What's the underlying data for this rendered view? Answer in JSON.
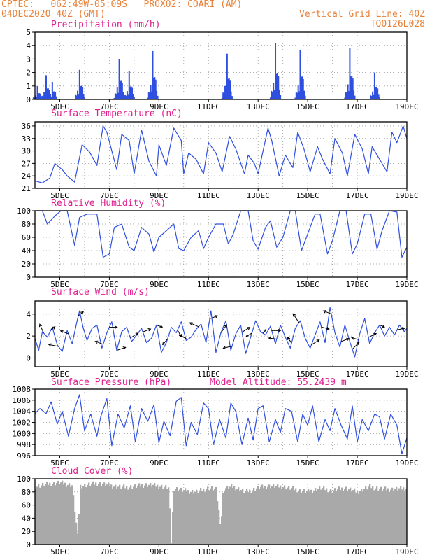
{
  "header": {
    "line1": "CPTEC:   062:49W-05:09S   PROX02: COARI (AM)",
    "line2": "04DEC2020 40Z (GMT)",
    "grid_note": "Vertical Grid Line: 40Z",
    "run_id": "TQ0126L028"
  },
  "colors": {
    "header": "#e8823a",
    "title": "#e0208f",
    "series": "#2f4fe0",
    "cloud": "#a9a9a9"
  },
  "chart_data": [
    {
      "type": "bar",
      "title": "Precipitation (mm/h)",
      "xlabel": "",
      "ylabel": "",
      "x_range": [
        4,
        19
      ],
      "ylim": [
        0,
        5
      ],
      "yticks": [
        0,
        1,
        2,
        3,
        4,
        5
      ],
      "xticks": [
        "5DEC",
        "7DEC",
        "9DEC",
        "11DEC",
        "13DEC",
        "15DEC",
        "17DEC",
        "19DEC"
      ],
      "grid": true,
      "bursts": [
        {
          "day": 4.1,
          "peak": 1.0
        },
        {
          "day": 4.45,
          "peak": 1.8
        },
        {
          "day": 4.7,
          "peak": 1.3
        },
        {
          "day": 5.8,
          "peak": 2.2
        },
        {
          "day": 7.4,
          "peak": 3.0
        },
        {
          "day": 7.8,
          "peak": 2.1
        },
        {
          "day": 8.75,
          "peak": 3.6
        },
        {
          "day": 11.75,
          "peak": 3.4
        },
        {
          "day": 13.7,
          "peak": 4.2
        },
        {
          "day": 14.7,
          "peak": 3.7
        },
        {
          "day": 16.7,
          "peak": 3.8
        },
        {
          "day": 17.7,
          "peak": 2.0
        }
      ]
    },
    {
      "type": "line",
      "title": "Surface Temperature (nC)",
      "xlabel": "",
      "ylabel": "",
      "x_range": [
        4,
        19
      ],
      "ylim": [
        21,
        37
      ],
      "yticks": [
        21,
        24,
        27,
        30,
        33,
        36
      ],
      "xticks": [
        "5DEC",
        "7DEC",
        "9DEC",
        "11DEC",
        "13DEC",
        "15DEC",
        "17DEC",
        "19DEC"
      ],
      "grid": true,
      "series": [
        {
          "x": [
            4.0,
            4.3,
            4.6,
            4.8,
            5.1,
            5.3,
            5.6,
            5.9,
            6.2,
            6.5,
            6.75,
            6.9,
            7.3,
            7.5,
            7.8,
            8.0,
            8.3,
            8.6,
            8.9,
            9.0,
            9.3,
            9.6,
            9.9,
            10.0,
            10.2,
            10.5,
            10.8,
            11.0,
            11.3,
            11.55,
            11.85,
            12.1,
            12.45,
            12.6,
            12.85,
            13.0,
            13.4,
            13.55,
            13.85,
            14.1,
            14.4,
            14.6,
            14.85,
            15.1,
            15.4,
            15.6,
            15.9,
            16.1,
            16.4,
            16.6,
            16.9,
            17.2,
            17.45,
            17.6,
            17.9,
            18.2,
            18.4,
            18.6,
            18.85,
            19.0
          ],
          "values": [
            22.8,
            22.3,
            23.5,
            27.0,
            25.5,
            24.0,
            22.5,
            31.5,
            29.8,
            26.5,
            36.0,
            34.5,
            25.5,
            34.0,
            32.5,
            24.5,
            35.0,
            27.5,
            24.0,
            31.5,
            26.5,
            35.5,
            32.5,
            24.5,
            29.5,
            28.0,
            24.5,
            32.0,
            29.5,
            25.0,
            33.5,
            30.5,
            24.5,
            29.0,
            27.0,
            24.5,
            35.5,
            32.5,
            24.0,
            29.0,
            26.0,
            34.5,
            30.5,
            25.0,
            31.0,
            28.0,
            24.5,
            33.0,
            29.5,
            24.0,
            34.0,
            30.5,
            24.5,
            31.0,
            28.0,
            25.0,
            34.5,
            32.0,
            36.0,
            33.0
          ]
        }
      ]
    },
    {
      "type": "line",
      "title": "Relative Humidity (%)",
      "xlabel": "",
      "ylabel": "",
      "x_range": [
        4,
        19
      ],
      "ylim": [
        0,
        100
      ],
      "yticks": [
        0,
        20,
        40,
        60,
        80,
        100
      ],
      "xticks": [
        "5DEC",
        "7DEC",
        "9DEC",
        "11DEC",
        "13DEC",
        "15DEC",
        "17DEC",
        "19DEC"
      ],
      "grid": true,
      "series": [
        {
          "x": [
            4.0,
            4.3,
            4.5,
            4.8,
            5.05,
            5.3,
            5.6,
            5.8,
            6.1,
            6.5,
            6.75,
            7.0,
            7.2,
            7.5,
            7.8,
            8.0,
            8.3,
            8.6,
            8.8,
            9.0,
            9.3,
            9.6,
            9.8,
            10.0,
            10.3,
            10.6,
            10.8,
            11.0,
            11.3,
            11.6,
            11.8,
            12.0,
            12.3,
            12.6,
            12.8,
            13.0,
            13.3,
            13.5,
            13.75,
            14.0,
            14.3,
            14.5,
            14.75,
            15.0,
            15.3,
            15.5,
            15.8,
            16.0,
            16.3,
            16.55,
            16.8,
            17.0,
            17.3,
            17.55,
            17.8,
            18.0,
            18.3,
            18.6,
            18.8,
            19.0
          ],
          "values": [
            100,
            100,
            80,
            92,
            100,
            100,
            48,
            90,
            95,
            95,
            30,
            35,
            75,
            80,
            45,
            40,
            75,
            65,
            38,
            60,
            70,
            80,
            43,
            40,
            60,
            70,
            43,
            60,
            80,
            80,
            50,
            65,
            100,
            100,
            55,
            42,
            75,
            85,
            45,
            60,
            100,
            100,
            40,
            65,
            95,
            95,
            35,
            55,
            100,
            100,
            35,
            50,
            95,
            95,
            42,
            70,
            100,
            98,
            30,
            45
          ]
        }
      ]
    },
    {
      "type": "line",
      "title": "Surface Wind (m/s)",
      "xlabel": "",
      "ylabel": "",
      "x_range": [
        4,
        19
      ],
      "ylim": [
        -0.8,
        5.2
      ],
      "yticks": [
        0,
        2,
        4
      ],
      "xticks": [
        "5DEC",
        "7DEC",
        "9DEC",
        "11DEC",
        "13DEC",
        "15DEC",
        "17DEC",
        "19DEC"
      ],
      "grid": true,
      "series": [
        {
          "x": [
            4.0,
            4.15,
            4.3,
            4.5,
            4.7,
            4.9,
            5.1,
            5.3,
            5.5,
            5.7,
            5.8,
            5.95,
            6.1,
            6.3,
            6.5,
            6.7,
            6.9,
            7.1,
            7.3,
            7.5,
            7.7,
            7.9,
            8.1,
            8.3,
            8.5,
            8.7,
            8.9,
            9.1,
            9.3,
            9.5,
            9.7,
            9.9,
            10.1,
            10.3,
            10.5,
            10.7,
            10.9,
            11.1,
            11.3,
            11.5,
            11.7,
            11.9,
            12.1,
            12.3,
            12.5,
            12.7,
            12.9,
            13.1,
            13.3,
            13.5,
            13.7,
            13.9,
            14.1,
            14.3,
            14.5,
            14.7,
            14.9,
            15.1,
            15.3,
            15.5,
            15.7,
            15.9,
            16.1,
            16.3,
            16.5,
            16.7,
            16.9,
            17.1,
            17.3,
            17.5,
            17.7,
            17.9,
            18.1,
            18.3,
            18.5,
            18.7,
            18.9,
            19.0
          ],
          "values": [
            1.8,
            0.7,
            2.4,
            1.9,
            2.8,
            1.2,
            0.6,
            2.5,
            1.3,
            3.4,
            4.3,
            2.7,
            1.6,
            2.7,
            3.0,
            0.9,
            2.3,
            3.3,
            0.7,
            2.4,
            2.8,
            1.5,
            2.1,
            2.7,
            1.4,
            1.8,
            3.0,
            0.5,
            1.4,
            2.8,
            2.3,
            3.3,
            1.6,
            1.9,
            2.6,
            3.1,
            1.4,
            4.3,
            0.5,
            2.3,
            3.4,
            0.7,
            2.2,
            3.0,
            0.4,
            1.9,
            3.4,
            2.4,
            2.1,
            2.9,
            1.3,
            3.0,
            1.9,
            0.9,
            2.7,
            3.4,
            1.8,
            0.9,
            2.1,
            3.3,
            1.4,
            4.6,
            2.3,
            1.0,
            3.0,
            1.5,
            0.1,
            2.2,
            3.6,
            1.3,
            2.3,
            3.0,
            2.0,
            2.8,
            2.1,
            3.0,
            2.4,
            2.7
          ]
        }
      ],
      "vectors": [
        {
          "day": 4.35,
          "u": -0.4,
          "v": 0.9
        },
        {
          "day": 4.65,
          "u": 0.4,
          "v": 0.3
        },
        {
          "day": 4.95,
          "u": -1.0,
          "v": 0.2
        },
        {
          "day": 5.35,
          "u": -0.8,
          "v": 0.3
        },
        {
          "day": 5.75,
          "u": 0.5,
          "v": 0.4
        },
        {
          "day": 6.75,
          "u": -0.8,
          "v": 0.3
        },
        {
          "day": 7.0,
          "u": 0.8,
          "v": 0.0
        },
        {
          "day": 7.3,
          "u": 0.9,
          "v": 0.3
        },
        {
          "day": 7.85,
          "u": 0.8,
          "v": 0.5
        },
        {
          "day": 8.35,
          "u": 0.8,
          "v": 0.3
        },
        {
          "day": 8.9,
          "u": 0.6,
          "v": -0.2
        },
        {
          "day": 9.35,
          "u": -0.5,
          "v": -0.6
        },
        {
          "day": 9.75,
          "u": 0.4,
          "v": -0.7
        },
        {
          "day": 10.15,
          "u": -0.8,
          "v": 0.5
        },
        {
          "day": 10.6,
          "u": -0.9,
          "v": 0.4
        },
        {
          "day": 11.05,
          "u": 0.8,
          "v": 0.3
        },
        {
          "day": 11.5,
          "u": 0.6,
          "v": 0.8
        },
        {
          "day": 11.95,
          "u": -0.9,
          "v": -0.2
        },
        {
          "day": 12.35,
          "u": 0.8,
          "v": 0.5
        },
        {
          "day": 12.75,
          "u": -0.6,
          "v": -0.4
        },
        {
          "day": 13.2,
          "u": 0.3,
          "v": 0.4
        },
        {
          "day": 13.55,
          "u": 0.9,
          "v": 0.0
        },
        {
          "day": 13.75,
          "u": -0.8,
          "v": 0.1
        },
        {
          "day": 14.35,
          "u": -0.4,
          "v": 0.6
        },
        {
          "day": 14.65,
          "u": -0.6,
          "v": 0.9
        },
        {
          "day": 15.15,
          "u": 0.8,
          "v": 0.5
        },
        {
          "day": 15.55,
          "u": 0.8,
          "v": -0.2
        },
        {
          "day": 15.95,
          "u": -0.8,
          "v": 0.3
        },
        {
          "day": 16.35,
          "u": 0.8,
          "v": 0.3
        },
        {
          "day": 16.8,
          "u": 0.7,
          "v": 0.7
        },
        {
          "day": 17.05,
          "u": -0.7,
          "v": 0.2
        },
        {
          "day": 17.45,
          "u": 0.8,
          "v": 0.4
        },
        {
          "day": 17.9,
          "u": 0.5,
          "v": -0.2
        },
        {
          "day": 18.6,
          "u": 0.8,
          "v": 0.2
        }
      ]
    },
    {
      "type": "line",
      "title": "Surface Pressure (hPa)",
      "annotation": "Model Altitude: 55.2439 m",
      "xlabel": "",
      "ylabel": "",
      "x_range": [
        4,
        19
      ],
      "ylim": [
        996,
        1008
      ],
      "yticks": [
        996,
        998,
        1000,
        1002,
        1004,
        1006,
        1008
      ],
      "xticks": [
        "5DEC",
        "7DEC",
        "9DEC",
        "11DEC",
        "13DEC",
        "15DEC",
        "17DEC",
        "19DEC"
      ],
      "grid": true,
      "series": [
        {
          "x": [
            4.0,
            4.2,
            4.45,
            4.65,
            4.9,
            5.1,
            5.35,
            5.6,
            5.8,
            6.0,
            6.25,
            6.5,
            6.65,
            6.9,
            7.1,
            7.35,
            7.6,
            7.85,
            8.05,
            8.3,
            8.55,
            8.8,
            9.0,
            9.2,
            9.45,
            9.7,
            9.9,
            10.1,
            10.3,
            10.55,
            10.8,
            11.0,
            11.2,
            11.45,
            11.7,
            11.9,
            12.1,
            12.35,
            12.6,
            12.8,
            13.0,
            13.2,
            13.45,
            13.7,
            13.9,
            14.1,
            14.35,
            14.6,
            14.8,
            15.0,
            15.2,
            15.45,
            15.7,
            15.9,
            16.1,
            16.35,
            16.6,
            16.8,
            17.0,
            17.2,
            17.45,
            17.7,
            17.9,
            18.1,
            18.35,
            18.6,
            18.8,
            19.0
          ],
          "values": [
            1003.6,
            1004.5,
            1003.6,
            1005.7,
            1001.7,
            1004.0,
            999.5,
            1004.5,
            1007.0,
            1000.5,
            1003.5,
            999.5,
            1003.0,
            1006.3,
            997.8,
            1003.5,
            1001.0,
            1005.0,
            998.5,
            1004.5,
            1002.2,
            1005.2,
            998.3,
            1002.2,
            999.6,
            1005.8,
            1006.5,
            997.8,
            1002.0,
            999.8,
            1005.5,
            1004.5,
            998.0,
            1002.5,
            999.2,
            1005.5,
            1004.0,
            998.0,
            1002.8,
            998.8,
            1004.5,
            1005.0,
            998.5,
            1002.5,
            1000.2,
            1004.5,
            1004.0,
            998.5,
            1003.5,
            1001.5,
            1005.0,
            998.5,
            1002.5,
            1000.5,
            1004.5,
            1001.5,
            999.0,
            1005.0,
            998.5,
            1002.5,
            1000.5,
            1003.5,
            1003.0,
            999.0,
            1003.5,
            1001.5,
            996.3,
            999.2
          ]
        }
      ]
    },
    {
      "type": "area",
      "title": "Cloud Cover (%)",
      "xlabel": "",
      "ylabel": "",
      "x_range": [
        4,
        19
      ],
      "ylim": [
        0,
        100
      ],
      "yticks": [
        0,
        20,
        40,
        60,
        80,
        100
      ],
      "xticks": [
        "5DEC",
        "7DEC",
        "9DEC",
        "11DEC",
        "13DEC",
        "15DEC",
        "17DEC",
        "19DEC"
      ],
      "grid": true,
      "series": [
        {
          "x": [
            4.0,
            4.5,
            5.0,
            5.5,
            5.75,
            5.8,
            6.0,
            6.5,
            7.0,
            7.5,
            8.0,
            8.5,
            9.0,
            9.4,
            9.5,
            9.6,
            10.0,
            10.5,
            11.0,
            11.3,
            11.5,
            11.6,
            12.0,
            12.5,
            13.0,
            13.5,
            14.0,
            14.5,
            15.0,
            15.5,
            16.0,
            16.5,
            17.0,
            17.5,
            18.0,
            18.5,
            19.0
          ],
          "values": [
            88,
            92,
            94,
            90,
            2,
            89,
            90,
            93,
            90,
            87,
            88,
            91,
            89,
            86,
            2,
            86,
            82,
            80,
            86,
            84,
            28,
            85,
            88,
            80,
            86,
            89,
            88,
            84,
            80,
            86,
            82,
            86,
            80,
            88,
            84,
            84,
            86
          ]
        }
      ]
    }
  ]
}
